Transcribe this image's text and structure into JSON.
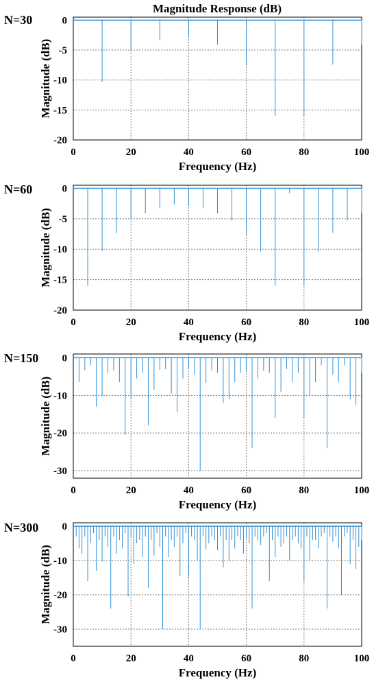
{
  "figure": {
    "title": "Magnitude Response (dB)"
  },
  "chart_data": [
    {
      "type": "bar",
      "panel_label": "N=30",
      "xlabel": "Frequency (Hz)",
      "ylabel": "Magnitude (dB)",
      "xlim": [
        0,
        100
      ],
      "ylim": [
        -20,
        0.5
      ],
      "xticks": [
        0,
        20,
        40,
        60,
        80,
        100
      ],
      "yticks": [
        0,
        -5,
        -10,
        -15,
        -20
      ],
      "grid": true,
      "stem_color": "#2f8fd6",
      "x": [
        10,
        20,
        30,
        40,
        50,
        60,
        70,
        80,
        90,
        100
      ],
      "values": [
        -10.3,
        -5.2,
        -3.3,
        -2.7,
        -4.1,
        -7.6,
        -16,
        -16,
        -7.4,
        -4.1
      ]
    },
    {
      "type": "bar",
      "panel_label": "N=60",
      "xlabel": "Frequency (Hz)",
      "ylabel": "Magnitude (dB)",
      "xlim": [
        0,
        100
      ],
      "ylim": [
        -20,
        0.5
      ],
      "xticks": [
        0,
        20,
        40,
        60,
        80,
        100
      ],
      "yticks": [
        0,
        -5,
        -10,
        -15,
        -20
      ],
      "grid": true,
      "stem_color": "#2f8fd6",
      "x": [
        5,
        10,
        15,
        20,
        25,
        30,
        35,
        40,
        45,
        50,
        55,
        60,
        65,
        70,
        75,
        80,
        85,
        90,
        95,
        100
      ],
      "values": [
        -16,
        -10.3,
        -7.4,
        -5.2,
        -4.1,
        -3.3,
        -2.7,
        -2.7,
        -3.3,
        -4.1,
        -5.3,
        -7.6,
        -10.4,
        -16,
        -0.8,
        -16,
        -10.4,
        -7.3,
        -5.3,
        -4.1
      ]
    },
    {
      "type": "bar",
      "panel_label": "N=150",
      "xlabel": "Frequency (Hz)",
      "ylabel": "Magnitude (dB)",
      "xlim": [
        0,
        100
      ],
      "ylim": [
        -32,
        1
      ],
      "xticks": [
        0,
        20,
        40,
        60,
        80,
        100
      ],
      "yticks": [
        0,
        -10,
        -20,
        -30
      ],
      "grid": true,
      "stem_color": "#2f8fd6",
      "x": [
        2,
        4,
        6,
        8,
        10,
        12,
        14,
        16,
        18,
        20,
        22,
        24,
        26,
        28,
        30,
        32,
        34,
        36,
        38,
        40,
        42,
        44,
        46,
        48,
        50,
        52,
        54,
        56,
        58,
        60,
        62,
        64,
        66,
        68,
        70,
        72,
        74,
        76,
        78,
        80,
        82,
        84,
        86,
        88,
        90,
        92,
        94,
        96,
        98,
        100
      ],
      "values": [
        -6.5,
        -3.3,
        -2,
        -13,
        -10.2,
        -4,
        -3.3,
        -6.5,
        -20.5,
        -11,
        -5.5,
        -4,
        -18,
        -8.5,
        -3.2,
        -3,
        -9.5,
        -14.5,
        -5.5,
        -3,
        -4.5,
        -30,
        -6.7,
        -3.3,
        -4,
        -12,
        -11,
        -6.5,
        -4,
        -3.5,
        -24,
        -5.5,
        -3.5,
        -4,
        -16,
        -9,
        -3,
        -6.5,
        -4,
        -16,
        -10,
        -6.5,
        -2,
        -24,
        -4.5,
        -6.5,
        -2,
        -11,
        -12.5,
        -4
      ]
    },
    {
      "type": "bar",
      "panel_label": "N=300",
      "xlabel": "Frequency (Hz)",
      "ylabel": "Magnitude (dB)",
      "xlim": [
        0,
        100
      ],
      "ylim": [
        -35,
        1
      ],
      "xticks": [
        0,
        20,
        40,
        60,
        80,
        100
      ],
      "yticks": [
        0,
        -10,
        -20,
        -30
      ],
      "grid": true,
      "stem_color": "#2f8fd6",
      "x": [
        1,
        2,
        3,
        4,
        5,
        6,
        7,
        8,
        9,
        10,
        11,
        12,
        13,
        14,
        15,
        16,
        17,
        18,
        19,
        20,
        21,
        22,
        23,
        24,
        25,
        26,
        27,
        28,
        29,
        30,
        31,
        32,
        33,
        34,
        35,
        36,
        37,
        38,
        39,
        40,
        41,
        42,
        43,
        44,
        45,
        46,
        47,
        48,
        49,
        50,
        51,
        52,
        53,
        54,
        55,
        56,
        57,
        58,
        59,
        60,
        61,
        62,
        63,
        64,
        65,
        66,
        67,
        68,
        69,
        70,
        71,
        72,
        73,
        74,
        75,
        76,
        77,
        78,
        79,
        80,
        81,
        82,
        83,
        84,
        85,
        86,
        87,
        88,
        89,
        90,
        91,
        92,
        93,
        94,
        95,
        96,
        97,
        98,
        99,
        100
      ],
      "values": [
        -3,
        -6.5,
        -8,
        -3,
        -16,
        -5,
        -2,
        -13,
        -4,
        -10.3,
        -3,
        -6,
        -24,
        -3,
        -8,
        -4,
        -6.5,
        -2,
        -20.5,
        -3,
        -11,
        -5,
        -4,
        -9,
        -3,
        -18,
        -4,
        -8.5,
        -2,
        -6,
        -30,
        -3,
        -9,
        -4,
        -6,
        -3,
        -14.5,
        -5,
        -2,
        -15,
        -3,
        -4,
        -10,
        -30,
        -3,
        -6.7,
        -5,
        -3,
        -4,
        -7,
        -3,
        -12,
        -4,
        -10,
        -4,
        -6.5,
        -3,
        -4,
        -8,
        -3.5,
        -5,
        -24,
        -3,
        -4,
        -5.5,
        -3,
        -2,
        -16,
        -4,
        -9,
        -3,
        -6,
        -5,
        -3,
        -10,
        -4,
        -3,
        -5,
        -6.5,
        -16,
        -3,
        -10,
        -4,
        -4,
        -6.5,
        -3,
        -2,
        -24,
        -3,
        -4.5,
        -3,
        -6.5,
        -20,
        -3,
        -2,
        -11,
        -4,
        -12.5,
        -6,
        -4
      ]
    }
  ]
}
